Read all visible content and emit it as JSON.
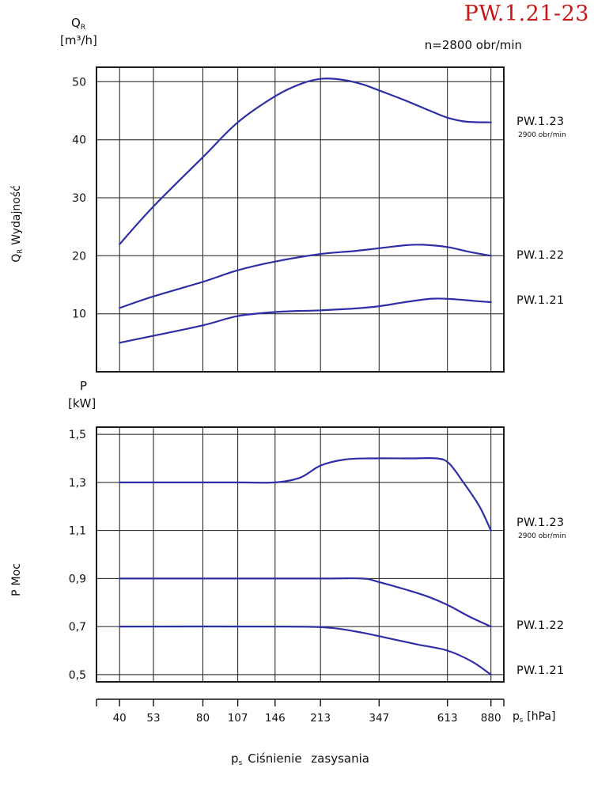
{
  "page": {
    "title": "PW.1.21-23",
    "subtitle": "n=2800 obr/min",
    "x_unit": {
      "symbol": "p",
      "sub": "s",
      "unit": "[hPa]"
    },
    "caption": {
      "symbol": "p",
      "sub": "s",
      "text": "Ciśnienie zasysania"
    },
    "colors": {
      "curve": "#2e2ea6",
      "grid": "#1a1a1a",
      "title": "#c81616",
      "text": "#111111"
    }
  },
  "chart_data": [
    {
      "type": "line",
      "name": "capacity-chart",
      "ylabel_symbol": "Q",
      "ylabel_symbol_sub": "R",
      "ylabel_unit": "[m³/h]",
      "ylabel_axis": "Wydajność",
      "x_scale": "log",
      "x_ticks": [
        40,
        53,
        80,
        107,
        146,
        213,
        347,
        613,
        880
      ],
      "x_range": [
        33,
        980
      ],
      "y_ticks": [
        10,
        20,
        30,
        40,
        50
      ],
      "y_tick_labels": [
        "10",
        "20",
        "30",
        "40",
        "50"
      ],
      "y_range": [
        0,
        52.5
      ],
      "grid": true,
      "legend_position": "right",
      "series": [
        {
          "name": "PW.1.23",
          "note": "2900 obr/min",
          "points": [
            [
              40,
              22
            ],
            [
              53,
              28.5
            ],
            [
              80,
              37
            ],
            [
              107,
              43
            ],
            [
              146,
              47.5
            ],
            [
              180,
              49.6
            ],
            [
              213,
              50.5
            ],
            [
              250,
              50.4
            ],
            [
              300,
              49.6
            ],
            [
              347,
              48.5
            ],
            [
              430,
              46.8
            ],
            [
              530,
              45
            ],
            [
              613,
              43.8
            ],
            [
              720,
              43.1
            ],
            [
              880,
              43
            ]
          ]
        },
        {
          "name": "PW.1.22",
          "points": [
            [
              40,
              11
            ],
            [
              53,
              13
            ],
            [
              80,
              15.5
            ],
            [
              107,
              17.5
            ],
            [
              146,
              19
            ],
            [
              213,
              20.3
            ],
            [
              280,
              20.8
            ],
            [
              347,
              21.3
            ],
            [
              430,
              21.8
            ],
            [
              500,
              21.9
            ],
            [
              613,
              21.5
            ],
            [
              730,
              20.7
            ],
            [
              880,
              20
            ]
          ]
        },
        {
          "name": "PW.1.21",
          "points": [
            [
              40,
              5
            ],
            [
              53,
              6.2
            ],
            [
              80,
              8
            ],
            [
              107,
              9.6
            ],
            [
              146,
              10.3
            ],
            [
              213,
              10.6
            ],
            [
              280,
              10.9
            ],
            [
              347,
              11.3
            ],
            [
              430,
              12
            ],
            [
              540,
              12.6
            ],
            [
              650,
              12.5
            ],
            [
              770,
              12.2
            ],
            [
              880,
              12
            ]
          ]
        }
      ]
    },
    {
      "type": "line",
      "name": "power-chart",
      "ylabel_symbol": "P",
      "ylabel_symbol_sub": "",
      "ylabel_unit": "[kW]",
      "ylabel_axis": "Moc",
      "x_scale": "log",
      "x_ticks": [
        40,
        53,
        80,
        107,
        146,
        213,
        347,
        613,
        880
      ],
      "x_range": [
        33,
        980
      ],
      "y_ticks": [
        0.5,
        0.7,
        0.9,
        1.1,
        1.3,
        1.5
      ],
      "y_tick_labels": [
        "0,5",
        "0,7",
        "0,9",
        "1,1",
        "1,3",
        "1,5"
      ],
      "y_range": [
        0.47,
        1.53
      ],
      "grid": true,
      "legend_position": "right",
      "series": [
        {
          "name": "PW.1.23",
          "note": "2900 obr/min",
          "points": [
            [
              40,
              1.3
            ],
            [
              107,
              1.3
            ],
            [
              146,
              1.3
            ],
            [
              180,
              1.32
            ],
            [
              213,
              1.37
            ],
            [
              260,
              1.395
            ],
            [
              320,
              1.4
            ],
            [
              450,
              1.4
            ],
            [
              560,
              1.4
            ],
            [
              620,
              1.38
            ],
            [
              700,
              1.3
            ],
            [
              800,
              1.2
            ],
            [
              880,
              1.1
            ]
          ]
        },
        {
          "name": "PW.1.22",
          "points": [
            [
              40,
              0.9
            ],
            [
              200,
              0.9
            ],
            [
              300,
              0.9
            ],
            [
              347,
              0.885
            ],
            [
              430,
              0.855
            ],
            [
              520,
              0.825
            ],
            [
              613,
              0.79
            ],
            [
              740,
              0.74
            ],
            [
              880,
              0.7
            ]
          ]
        },
        {
          "name": "PW.1.21",
          "points": [
            [
              40,
              0.7
            ],
            [
              160,
              0.7
            ],
            [
              230,
              0.695
            ],
            [
              300,
              0.675
            ],
            [
              380,
              0.65
            ],
            [
              480,
              0.625
            ],
            [
              613,
              0.6
            ],
            [
              750,
              0.555
            ],
            [
              880,
              0.5
            ]
          ]
        }
      ]
    }
  ]
}
